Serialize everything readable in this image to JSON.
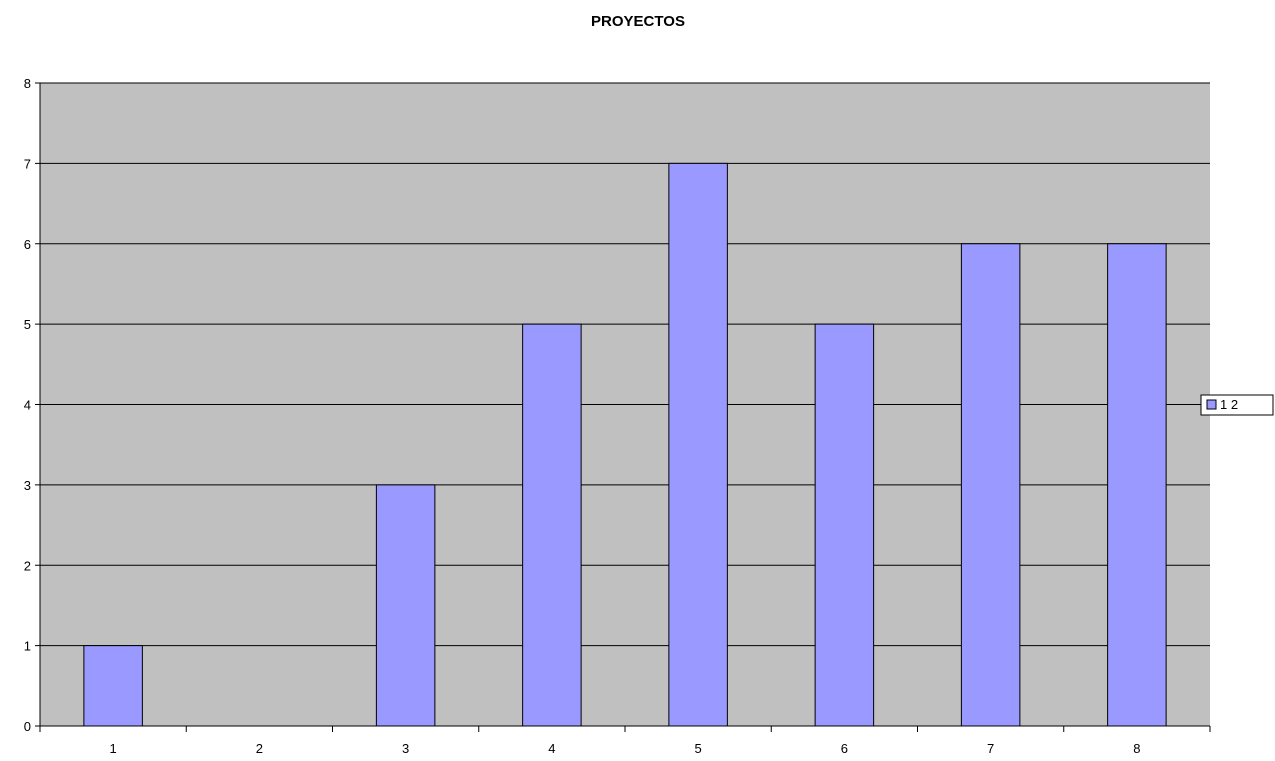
{
  "chart_data": {
    "type": "bar",
    "title": "PROYECTOS",
    "xlabel": "",
    "ylabel": "",
    "categories": [
      "1",
      "2",
      "3",
      "4",
      "5",
      "6",
      "7",
      "8"
    ],
    "series": [
      {
        "name": "1 2",
        "values": [
          1,
          0,
          3,
          5,
          7,
          5,
          6,
          6
        ]
      }
    ],
    "ylim": [
      0,
      8
    ],
    "yticks": [
      "0",
      "1",
      "2",
      "3",
      "4",
      "5",
      "6",
      "7",
      "8"
    ],
    "grid": true,
    "legend_position": "right",
    "colors": {
      "plot_background": "#c0c0c0",
      "bar_fill": "#9999ff",
      "bar_stroke": "#000000",
      "gridline": "#000000"
    }
  }
}
